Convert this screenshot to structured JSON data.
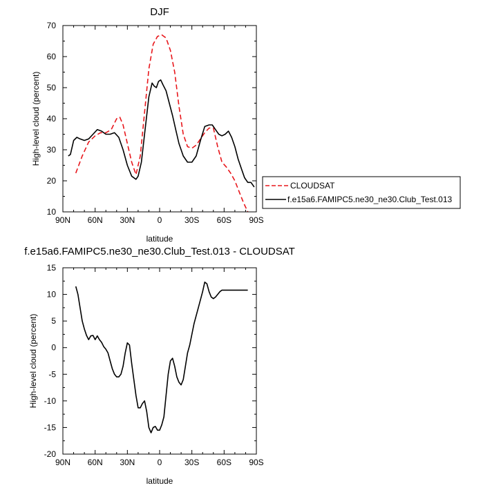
{
  "chart_data": [
    {
      "type": "line",
      "title": "DJF",
      "xlabel": "latitude",
      "ylabel": "High-level cloud (percent)",
      "xlim": [
        -90,
        90
      ],
      "ylim": [
        10,
        70
      ],
      "x_ticks": [
        -90,
        -60,
        -30,
        0,
        30,
        60,
        90
      ],
      "x_tick_labels": [
        "90N",
        "60N",
        "30N",
        "0",
        "30S",
        "60S",
        "90S"
      ],
      "y_ticks": [
        10,
        20,
        30,
        40,
        50,
        60,
        70
      ],
      "y_tick_labels": [
        "10",
        "20",
        "30",
        "40",
        "50",
        "60",
        "70"
      ],
      "grid": false,
      "legend_position": "right",
      "series": [
        {
          "name": "CLOUDSAT",
          "color": "#e8161b",
          "dash": "dashed",
          "x": [
            -78,
            -72,
            -66,
            -60,
            -55,
            -50,
            -45,
            -40,
            -37,
            -34,
            -30,
            -26,
            -22,
            -18,
            -14,
            -10,
            -6,
            -2,
            2,
            6,
            10,
            14,
            18,
            22,
            26,
            30,
            34,
            38,
            42,
            46,
            50,
            54,
            58,
            62,
            66,
            70,
            74,
            78,
            82
          ],
          "y": [
            22.5,
            28,
            32.5,
            34.5,
            35.5,
            35.5,
            36.5,
            40,
            40.5,
            38,
            32,
            26,
            22,
            28,
            42,
            56,
            64,
            66.5,
            67,
            66,
            62,
            55,
            44,
            35,
            31,
            30.5,
            31.5,
            33.5,
            35.5,
            37,
            37,
            31,
            26,
            24.5,
            22.5,
            20,
            16.5,
            13,
            9.5
          ]
        },
        {
          "name": "f.e15a6.FAMIPC5.ne30_ne30.Club_Test.013",
          "color": "#000000",
          "dash": "solid",
          "x": [
            -85,
            -83,
            -80,
            -77,
            -74,
            -70,
            -66,
            -62,
            -58,
            -54,
            -50,
            -46,
            -42,
            -38,
            -34,
            -30,
            -26,
            -22,
            -20,
            -17,
            -14,
            -10,
            -7,
            -5,
            -3,
            -1,
            1,
            3,
            6,
            9,
            12,
            15,
            18,
            22,
            26,
            30,
            34,
            38,
            42,
            46,
            49,
            52,
            55,
            58,
            61,
            64,
            67,
            70,
            73,
            76,
            79,
            82,
            85,
            88
          ],
          "y": [
            28,
            28.5,
            33,
            34,
            33.5,
            33,
            33.5,
            35,
            36.5,
            36,
            35,
            35,
            35.5,
            34,
            30,
            25,
            21.5,
            20.5,
            21.5,
            26,
            35,
            47,
            51.5,
            50.5,
            50,
            52,
            52.5,
            51,
            49,
            45,
            41,
            36.5,
            32,
            28,
            26,
            26,
            28,
            33,
            37.5,
            38,
            38,
            36.5,
            35,
            34.5,
            35,
            36,
            34,
            31,
            27,
            24,
            21,
            19.5,
            19.5,
            18
          ]
        }
      ]
    },
    {
      "type": "line",
      "title": "f.e15a6.FAMIPC5.ne30_ne30.Club_Test.013 - CLOUDSAT",
      "xlabel": "latitude",
      "ylabel": "High-level cloud (percent)",
      "xlim": [
        -90,
        90
      ],
      "ylim": [
        -20,
        15
      ],
      "x_ticks": [
        -90,
        -60,
        -30,
        0,
        30,
        60,
        90
      ],
      "x_tick_labels": [
        "90N",
        "60N",
        "30N",
        "0",
        "30S",
        "60S",
        "90S"
      ],
      "y_ticks": [
        -20,
        -15,
        -10,
        -5,
        0,
        5,
        10,
        15
      ],
      "y_tick_labels": [
        "-20",
        "-15",
        "-10",
        "-5",
        "0",
        "5",
        "10",
        "15"
      ],
      "grid": false,
      "series": [
        {
          "color": "#000000",
          "dash": "solid",
          "x": [
            -78,
            -76,
            -74,
            -72,
            -70,
            -68,
            -66,
            -64,
            -62,
            -60,
            -58,
            -56,
            -54,
            -52,
            -50,
            -48,
            -46,
            -44,
            -42,
            -40,
            -38,
            -36,
            -34,
            -32,
            -30,
            -28,
            -26,
            -24,
            -22,
            -20,
            -18,
            -16,
            -14,
            -12,
            -10,
            -8,
            -6,
            -4,
            -2,
            0,
            2,
            4,
            6,
            8,
            10,
            12,
            14,
            16,
            18,
            20,
            22,
            24,
            26,
            28,
            30,
            32,
            34,
            36,
            38,
            40,
            42,
            44,
            46,
            48,
            50,
            52,
            54,
            56,
            58,
            60,
            62,
            64,
            66,
            68,
            70,
            72,
            74,
            76,
            78,
            80,
            82
          ],
          "y": [
            11.5,
            10,
            7.5,
            5,
            3.5,
            2.3,
            1.5,
            2.2,
            2.3,
            1.5,
            2.2,
            1.5,
            1.0,
            0.2,
            -0.3,
            -1.0,
            -2.5,
            -4.0,
            -5.0,
            -5.5,
            -5.5,
            -5.0,
            -3.5,
            -1.0,
            0.9,
            0.5,
            -3.0,
            -6.0,
            -9.0,
            -11.3,
            -11.3,
            -10.5,
            -10.0,
            -12.0,
            -15.0,
            -16.0,
            -15.0,
            -14.8,
            -15.5,
            -15.5,
            -14.5,
            -13.0,
            -9.0,
            -5.0,
            -2.5,
            -2.0,
            -3.5,
            -5.5,
            -6.5,
            -7.0,
            -6.0,
            -3.5,
            -1.0,
            0.5,
            2.5,
            4.5,
            6.0,
            7.5,
            9.0,
            10.5,
            12.3,
            12.0,
            10.5,
            9.5,
            9.2,
            9.5,
            10.0,
            10.5,
            10.8,
            10.8,
            10.8,
            10.8,
            10.8,
            10.8,
            10.8,
            10.8,
            10.8,
            10.8,
            10.8,
            10.8,
            10.8
          ]
        }
      ]
    }
  ]
}
